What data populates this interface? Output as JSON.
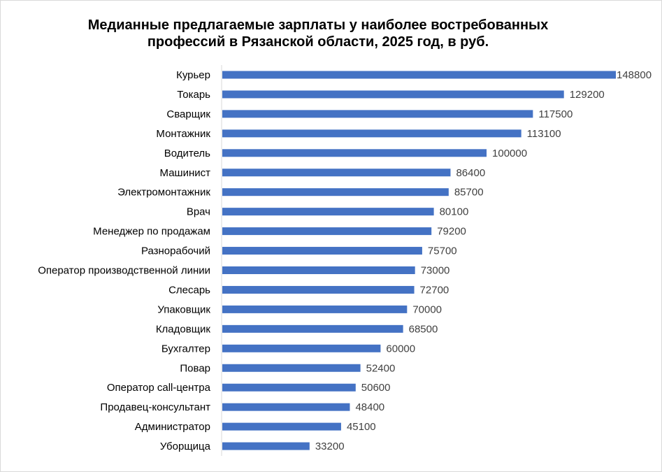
{
  "chart_data": {
    "type": "bar",
    "orientation": "horizontal",
    "title_lines": [
      "Медианные предлагаемые зарплаты у наиболее востребованных",
      "профессий в Рязанской области, 2025 год, в руб."
    ],
    "categories": [
      "Курьер",
      "Токарь",
      "Сварщик",
      "Монтажник",
      "Водитель",
      "Машинист",
      "Электромонтажник",
      "Врач",
      "Менеджер по продажам",
      "Разнорабочий",
      "Оператор производственной линии",
      "Слесарь",
      "Упаковщик",
      "Кладовщик",
      "Бухгалтер",
      "Повар",
      "Оператор call-центра",
      "Продавец-консультант",
      "Администратор",
      "Уборщица"
    ],
    "values": [
      148800,
      129200,
      117500,
      113100,
      100000,
      86400,
      85700,
      80100,
      79200,
      75700,
      73000,
      72700,
      70000,
      68500,
      60000,
      52400,
      50600,
      48400,
      45100,
      33200
    ],
    "value_labels": [
      "148800",
      "129200",
      "117500",
      "113100",
      "100000",
      "86400",
      "85700",
      "80100",
      "79200",
      "75700",
      "73000",
      "72700",
      "70000",
      "68500",
      "60000",
      "52400",
      "50600",
      "48400",
      "45100",
      "33200"
    ],
    "xlim": [
      0,
      150000
    ],
    "grid": false,
    "legend": "none",
    "bar_color": "#4472c4",
    "axis_color": "#d9d9d9"
  }
}
